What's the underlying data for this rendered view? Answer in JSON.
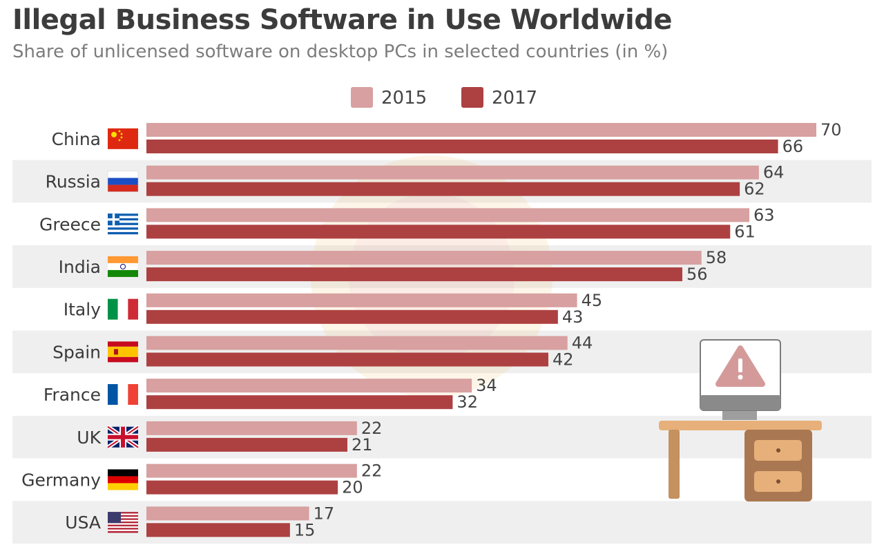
{
  "header": {
    "title": "Illegal Business Software in Use Worldwide",
    "subtitle": "Share of unlicensed software on desktop PCs in selected countries (in %)"
  },
  "colors": {
    "series_2015": "#d8a0a0",
    "series_2017": "#ad4141",
    "stripe": "#efefef"
  },
  "chart_data": {
    "type": "bar",
    "orientation": "horizontal",
    "categories": [
      "China",
      "Russia",
      "Greece",
      "India",
      "Italy",
      "Spain",
      "France",
      "UK",
      "Germany",
      "USA"
    ],
    "series": [
      {
        "name": "2015",
        "values": [
          70,
          64,
          63,
          58,
          45,
          44,
          34,
          22,
          22,
          17
        ]
      },
      {
        "name": "2017",
        "values": [
          66,
          62,
          61,
          56,
          43,
          42,
          32,
          21,
          20,
          15
        ]
      }
    ],
    "xlim": [
      0,
      70
    ],
    "legend_placement": "top-center",
    "grid": false,
    "flags": [
      "china-flag-icon",
      "russia-flag-icon",
      "greece-flag-icon",
      "india-flag-icon",
      "italy-flag-icon",
      "spain-flag-icon",
      "france-flag-icon",
      "uk-flag-icon",
      "germany-flag-icon",
      "usa-flag-icon"
    ]
  },
  "illustration": {
    "icons": [
      "warning-icon",
      "monitor-icon",
      "desk-icon"
    ]
  }
}
